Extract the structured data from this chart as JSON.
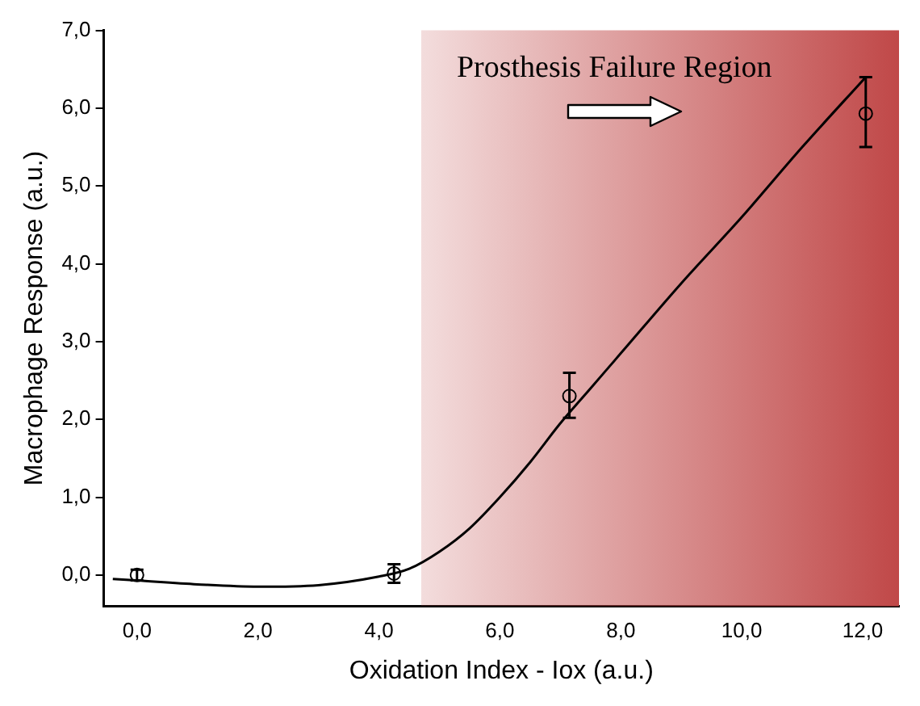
{
  "chart_data": {
    "type": "scatter",
    "xlabel": "Oxidation Index - Iox (a.u.)",
    "ylabel": "Macrophage Response (a.u.)",
    "xlim": [
      -0.55,
      12.6
    ],
    "ylim": [
      -0.4,
      7
    ],
    "xticks": [
      {
        "value": 0,
        "label": "0,0"
      },
      {
        "value": 2,
        "label": "2,0"
      },
      {
        "value": 4,
        "label": "4,0"
      },
      {
        "value": 6,
        "label": "6,0"
      },
      {
        "value": 8,
        "label": "8,0"
      },
      {
        "value": 10,
        "label": "10,0"
      },
      {
        "value": 12,
        "label": "12,0"
      }
    ],
    "yticks": [
      {
        "value": 0,
        "label": "0,0"
      },
      {
        "value": 1,
        "label": "1,0"
      },
      {
        "value": 2,
        "label": "2,0"
      },
      {
        "value": 3,
        "label": "3,0"
      },
      {
        "value": 4,
        "label": "4,0"
      },
      {
        "value": 5,
        "label": "5,0"
      },
      {
        "value": 6,
        "label": "6,0"
      },
      {
        "value": 7,
        "label": "7,0"
      }
    ],
    "bands": [
      {
        "axis": "x",
        "from": 4.7,
        "to": 12.6,
        "label": "Prosthesis Failure Region",
        "color": "#c04848"
      }
    ],
    "series": [
      {
        "type": "line",
        "color": "#000000",
        "marker": "none",
        "line_style": "solid",
        "x": [
          -0.4,
          0,
          1,
          2,
          3,
          4,
          4.5,
          5,
          5.5,
          6,
          6.5,
          7,
          7.5,
          8,
          9,
          10,
          11,
          12.05
        ],
        "values": [
          -0.05,
          -0.07,
          -0.12,
          -0.15,
          -0.13,
          -0.02,
          0.08,
          0.3,
          0.6,
          1.0,
          1.45,
          1.95,
          2.4,
          2.85,
          3.75,
          4.6,
          5.5,
          6.4
        ]
      },
      {
        "color": "#000000",
        "marker": "circle",
        "x": [
          0,
          4.25,
          7.15,
          12.05
        ],
        "values": [
          0.0,
          0.02,
          2.3,
          5.93
        ],
        "errors": [
          0.07,
          0.12,
          [
            2.02,
            2.6
          ],
          [
            5.5,
            6.4
          ]
        ]
      }
    ],
    "grid": false,
    "legend": false
  }
}
